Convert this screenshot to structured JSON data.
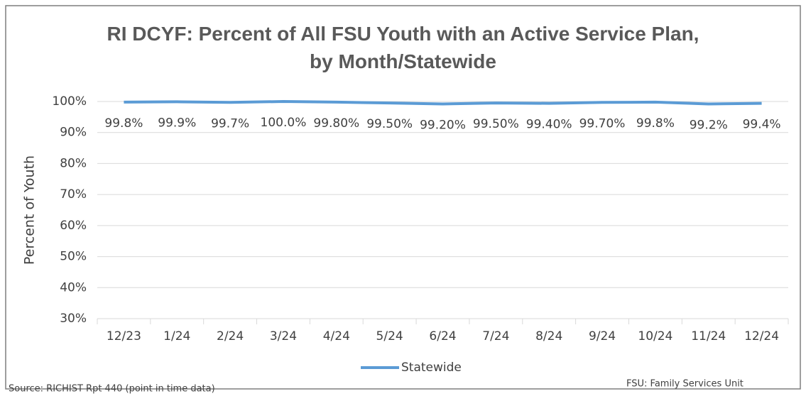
{
  "chart_data": {
    "type": "line",
    "title": "RI DCYF: Percent of All FSU Youth with an Active Service Plan, by Month/Statewide",
    "y_label": "Percent of Youth",
    "categories": [
      "12/23",
      "1/24",
      "2/24",
      "3/24",
      "4/24",
      "5/24",
      "6/24",
      "7/24",
      "8/24",
      "9/24",
      "10/24",
      "11/24",
      "12/24"
    ],
    "series": [
      {
        "name": "Statewide",
        "color": "#5b9bd5",
        "values": [
          99.8,
          99.9,
          99.7,
          100.0,
          99.8,
          99.5,
          99.2,
          99.5,
          99.4,
          99.7,
          99.8,
          99.2,
          99.4
        ],
        "value_labels": [
          "99.8%",
          "99.9%",
          "99.7%",
          "100.0%",
          "99.80%",
          "99.50%",
          "99.20%",
          "99.50%",
          "99.40%",
          "99.70%",
          "99.8%",
          "99.2%",
          "99.4%"
        ]
      }
    ],
    "ylim": [
      30,
      100
    ],
    "yticks": [
      {
        "value": 30,
        "label": "30%"
      },
      {
        "value": 40,
        "label": "40%"
      },
      {
        "value": 50,
        "label": "50%"
      },
      {
        "value": 60,
        "label": "60%"
      },
      {
        "value": 70,
        "label": "70%"
      },
      {
        "value": 80,
        "label": "80%"
      },
      {
        "value": 90,
        "label": "90%"
      },
      {
        "value": 100,
        "label": "100%"
      }
    ],
    "grid": true,
    "legend": "bottom",
    "annotations": [
      "Source: RICHIST Rpt 440 (point in time data)",
      "FSU: Family Services Unit"
    ]
  }
}
